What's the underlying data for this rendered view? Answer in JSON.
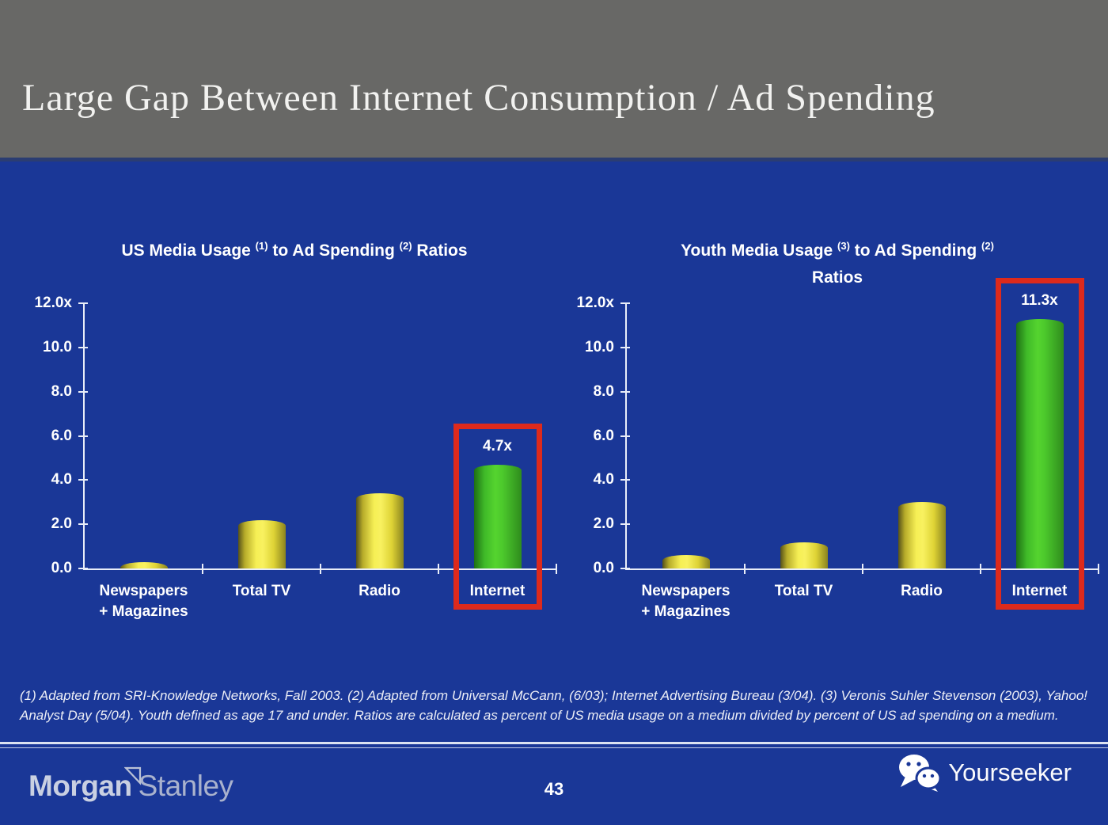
{
  "slide": {
    "title": "Large Gap Between Internet Consumption / Ad Spending",
    "page_number": "43"
  },
  "footnote": "(1) Adapted from SRI-Knowledge Networks, Fall 2003.  (2) Adapted from Universal McCann, (6/03); Internet Advertising Bureau (3/04). (3) Veronis Suhler Stevenson (2003), Yahoo! Analyst Day (5/04).  Youth defined as age 17 and under.  Ratios are calculated as percent of US media usage on a medium divided by percent of US ad spending on a medium.",
  "footer": {
    "brand_morgan": "Morgan",
    "brand_stanley": "Stanley",
    "yourseeker_label": "Yourseeker"
  },
  "colors": {
    "background_blue": "#1a3797",
    "header_gray": "#686866",
    "bar_yellow": "#f6ef55",
    "bar_green": "#55d42f",
    "highlight_red": "#dd2a1c",
    "axis_white": "#e9edf8",
    "brand_silver": "#c9d0e2"
  },
  "chart_data": [
    {
      "type": "bar",
      "title": "US Media Usage (1) to Ad Spending (2) Ratios",
      "title_lines": [
        [
          {
            "t": "US Media Usage "
          },
          {
            "t": "(1)",
            "sup": true
          },
          {
            "t": " to Ad Spending "
          },
          {
            "t": "(2)",
            "sup": true
          },
          {
            "t": " Ratios"
          }
        ]
      ],
      "categories": [
        "Newspapers\n+ Magazines",
        "Total TV",
        "Radio",
        "Internet"
      ],
      "values": [
        0.3,
        2.2,
        3.4,
        4.7
      ],
      "ylim": [
        0,
        12
      ],
      "ytick_labels": [
        "12.0x",
        "10.0",
        "8.0",
        "6.0",
        "4.0",
        "2.0",
        "0.0"
      ],
      "grid": false,
      "legend": "none",
      "highlight": {
        "category": "Internet",
        "label": "4.7x"
      }
    },
    {
      "type": "bar",
      "title": "Youth Media Usage (3) to Ad Spending (2) Ratios",
      "title_lines": [
        [
          {
            "t": "Youth Media Usage "
          },
          {
            "t": "(3)",
            "sup": true
          },
          {
            "t": " to Ad Spending "
          },
          {
            "t": "(2)",
            "sup": true
          }
        ],
        [
          {
            "t": "Ratios"
          }
        ]
      ],
      "categories": [
        "Newspapers\n+ Magazines",
        "Total TV",
        "Radio",
        "Internet"
      ],
      "values": [
        0.6,
        1.2,
        3.0,
        11.3
      ],
      "ylim": [
        0,
        12
      ],
      "ytick_labels": [
        "12.0x",
        "10.0",
        "8.0",
        "6.0",
        "4.0",
        "2.0",
        "0.0"
      ],
      "grid": false,
      "legend": "none",
      "highlight": {
        "category": "Internet",
        "label": "11.3x"
      }
    }
  ]
}
